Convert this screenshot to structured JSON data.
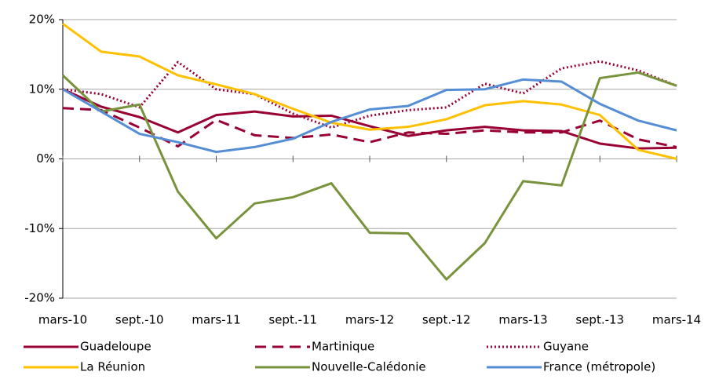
{
  "chart_data": {
    "type": "line",
    "categories": [
      "mars-10",
      null,
      "sept.-10",
      null,
      "mars-11",
      null,
      "sept.-11",
      null,
      "mars-12",
      null,
      "sept.-12",
      null,
      "mars-13",
      null,
      "sept.-13",
      null,
      "mars-14"
    ],
    "series": [
      {
        "name": "Guadeloupe",
        "color": "#990033",
        "line_style": "solid",
        "values": [
          10.0,
          7.5,
          6.0,
          3.8,
          6.3,
          6.8,
          6.1,
          6.2,
          4.7,
          3.3,
          4.1,
          4.6,
          4.1,
          4.0,
          2.2,
          1.5,
          1.6
        ]
      },
      {
        "name": "Martinique",
        "color": "#990033",
        "line_style": "dashed",
        "values": [
          7.3,
          7.0,
          4.5,
          1.8,
          5.6,
          3.4,
          3.0,
          3.5,
          2.4,
          3.8,
          3.6,
          4.1,
          3.8,
          3.8,
          5.5,
          2.8,
          1.7
        ]
      },
      {
        "name": "Guyane",
        "color": "#990033",
        "line_style": "dotted",
        "values": [
          10.0,
          9.3,
          7.4,
          13.9,
          10.0,
          9.3,
          6.5,
          4.5,
          6.2,
          7.0,
          7.4,
          10.8,
          9.4,
          13.0,
          14.0,
          12.7,
          10.5
        ]
      },
      {
        "name": "La Réunion",
        "color": "#FFC000",
        "line_style": "solid",
        "values": [
          19.4,
          15.4,
          14.7,
          12.0,
          10.7,
          9.3,
          7.2,
          5.2,
          4.2,
          4.6,
          5.7,
          7.7,
          8.3,
          7.8,
          6.3,
          1.3,
          0.0
        ]
      },
      {
        "name": "Nouvelle-Calédonie",
        "color": "#77933C",
        "line_style": "solid",
        "values": [
          12.0,
          6.8,
          7.8,
          -4.7,
          -11.4,
          -6.4,
          -5.5,
          -3.5,
          -10.6,
          -10.7,
          -17.3,
          -12.1,
          -3.2,
          -3.8,
          11.6,
          12.4,
          10.5
        ]
      },
      {
        "name": "France (métropole)",
        "color": "#558ED5",
        "line_style": "solid",
        "values": [
          10.0,
          6.8,
          3.6,
          2.4,
          1.0,
          1.7,
          2.9,
          5.3,
          7.1,
          7.6,
          9.9,
          10.0,
          11.4,
          11.1,
          7.9,
          5.5,
          4.1
        ]
      }
    ],
    "ylim": [
      -20,
      20
    ],
    "yticks": [
      {
        "value": -20,
        "label": "-20%"
      },
      {
        "value": -10,
        "label": "-10%"
      },
      {
        "value": 0,
        "label": "0%"
      },
      {
        "value": 10,
        "label": "10%"
      },
      {
        "value": 20,
        "label": "20%"
      }
    ],
    "grid": true,
    "legend": "bottom"
  }
}
